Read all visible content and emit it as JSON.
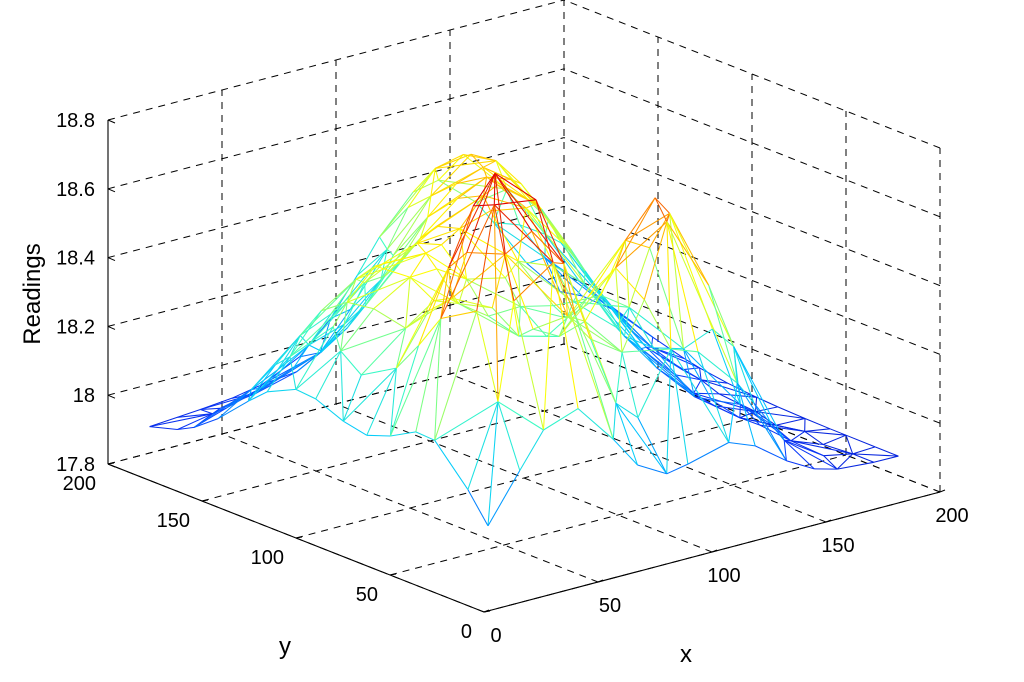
{
  "chart_data": {
    "type": "3d-surface-mesh",
    "title": "",
    "xlabel": "x",
    "ylabel": "y",
    "zlabel": "Readings",
    "xlim": [
      0,
      200
    ],
    "ylim": [
      0,
      200
    ],
    "zlim": [
      17.8,
      18.8
    ],
    "xticks": [
      0,
      50,
      100,
      150,
      200
    ],
    "yticks": [
      0,
      50,
      100,
      150,
      200
    ],
    "zticks": [
      17.8,
      18,
      18.2,
      18.4,
      18.6,
      18.8
    ],
    "x_tick_labels": [
      "0",
      "50",
      "100",
      "150",
      "200"
    ],
    "y_tick_labels": [
      "0",
      "50",
      "100",
      "150",
      "200"
    ],
    "z_tick_labels": [
      "17.8",
      "18",
      "18.2",
      "18.4",
      "18.6",
      "18.8"
    ],
    "grid": true,
    "colormap": "jet",
    "colormap_colors": [
      "#0000aa",
      "#0a3cff",
      "#00c8ff",
      "#40ffbf",
      "#ffff00",
      "#ff8000",
      "#e00000"
    ],
    "base_level": 17.9,
    "peaks": [
      {
        "x": 45,
        "y": 40,
        "height": 18.88,
        "spread": 22
      },
      {
        "x": 115,
        "y": 45,
        "height": 18.67,
        "spread": 20
      },
      {
        "x": 45,
        "y": 110,
        "height": 18.42,
        "spread": 32
      },
      {
        "x": 110,
        "y": 120,
        "height": 18.42,
        "spread": 30
      },
      {
        "x": 135,
        "y": 175,
        "height": 18.45,
        "spread": 30
      }
    ]
  }
}
